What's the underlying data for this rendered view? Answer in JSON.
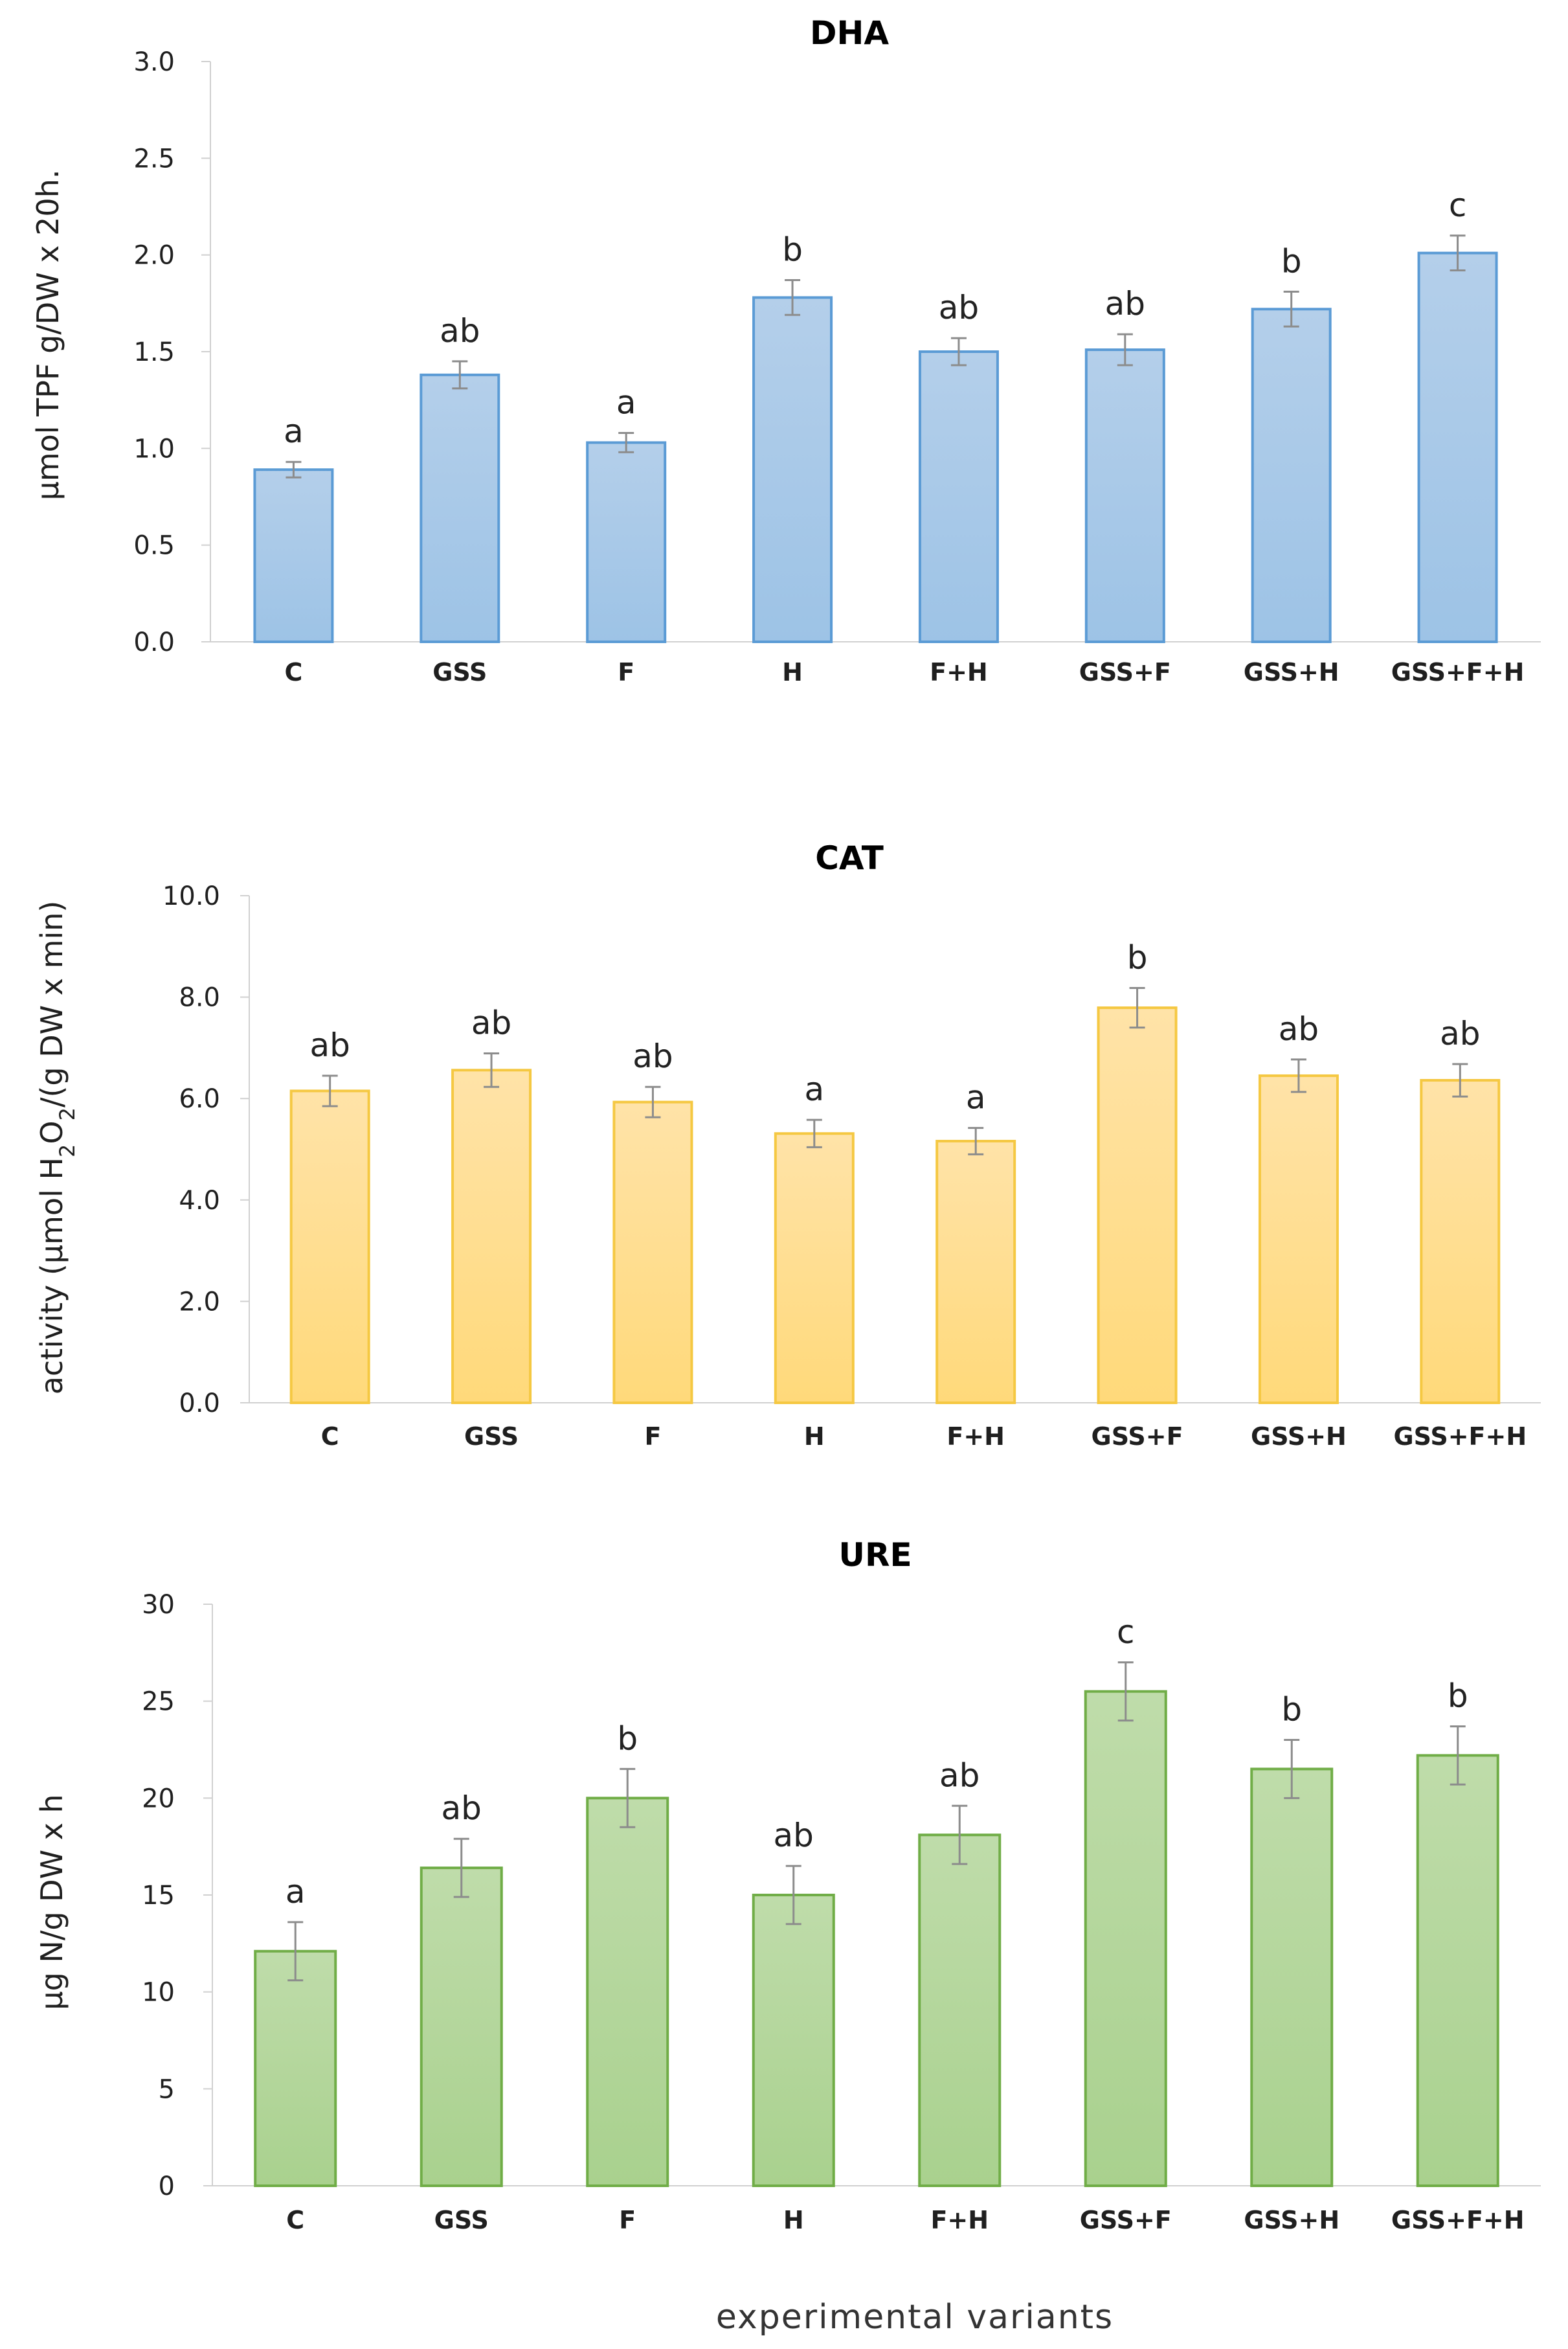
{
  "chart_data": [
    {
      "type": "bar",
      "title": "DHA",
      "ylabel": "µmol TPF g/DW x 20h.",
      "ylim": [
        0,
        3.0
      ],
      "yticks": [
        "0.0",
        "0.5",
        "1.0",
        "1.5",
        "2.0",
        "2.5",
        "3.0"
      ],
      "categories": [
        "C",
        "GSS",
        "F",
        "H",
        "F+H",
        "GSS+F",
        "GSS+H",
        "GSS+F+H"
      ],
      "values": [
        0.89,
        1.38,
        1.03,
        1.78,
        1.5,
        1.51,
        1.72,
        2.01
      ],
      "errors": [
        0.04,
        0.07,
        0.05,
        0.09,
        0.07,
        0.08,
        0.09,
        0.09
      ],
      "labels": [
        "a",
        "ab",
        "a",
        "b",
        "ab",
        "ab",
        "b",
        "c"
      ],
      "color": "#9dc3e6",
      "color_top": "#b4cfea",
      "edge": "#5b9bd5"
    },
    {
      "type": "bar",
      "title": "CAT",
      "ylabel": "activity (µmol H",
      "ylabel_sub": "2",
      "ylabel_mid": "O",
      "ylabel_sub2": "2",
      "ylabel_end": "/(g DW x min)",
      "ylim": [
        0,
        10.0
      ],
      "yticks": [
        "0.0",
        "2.0",
        "4.0",
        "6.0",
        "8.0",
        "10.0"
      ],
      "categories": [
        "C",
        "GSS",
        "F",
        "H",
        "F+H",
        "GSS+F",
        "GSS+H",
        "GSS+F+H"
      ],
      "values": [
        6.15,
        6.56,
        5.93,
        5.31,
        5.16,
        7.79,
        6.45,
        6.36
      ],
      "errors": [
        0.3,
        0.33,
        0.3,
        0.27,
        0.26,
        0.39,
        0.32,
        0.32
      ],
      "labels": [
        "ab",
        "ab",
        "ab",
        "a",
        "a",
        "b",
        "ab",
        "ab"
      ],
      "color": "#ffd97a",
      "color_top": "#ffe3a8",
      "edge": "#f5c842"
    },
    {
      "type": "bar",
      "title": "URE",
      "ylabel": "µg N/g DW x h",
      "ylim": [
        0,
        30
      ],
      "yticks": [
        "0",
        "5",
        "10",
        "15",
        "20",
        "25",
        "30"
      ],
      "categories": [
        "C",
        "GSS",
        "F",
        "H",
        "F+H",
        "GSS+F",
        "GSS+H",
        "GSS+F+H"
      ],
      "values": [
        12.1,
        16.4,
        20.0,
        15.0,
        18.1,
        25.5,
        21.5,
        22.2
      ],
      "errors": [
        1.5,
        1.5,
        1.5,
        1.5,
        1.5,
        1.5,
        1.5,
        1.5
      ],
      "labels": [
        "a",
        "ab",
        "b",
        "ab",
        "ab",
        "c",
        "b",
        "b"
      ],
      "color": "#a9d18e",
      "color_top": "#bfdcaa",
      "edge": "#70ad47"
    }
  ],
  "xlabel": "experimental variants"
}
